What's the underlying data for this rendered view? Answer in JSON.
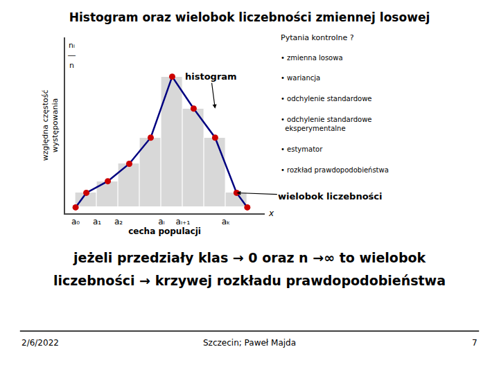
{
  "chart_data": {
    "type": "histogram",
    "title": "Histogram oraz wielobok liczebności zmiennej losowej",
    "xlabel": "cecha populacji",
    "ylabel": "względna częstość\nwystępowania",
    "bins": [
      0,
      1,
      2,
      3,
      4,
      5,
      6,
      7,
      8
    ],
    "values": [
      0.1,
      0.18,
      0.3,
      0.48,
      0.9,
      0.68,
      0.48,
      0.1
    ],
    "color": "#d8d8d8",
    "series": [
      {
        "type": "line",
        "color": "#000080",
        "x": [
          0,
          0.5,
          1.5,
          2.5,
          3.5,
          4.5,
          5.5,
          6.5,
          7.5,
          8
        ],
        "values": [
          0,
          0.1,
          0.18,
          0.3,
          0.48,
          0.9,
          0.68,
          0.48,
          0.1,
          0
        ]
      },
      {
        "type": "scatter",
        "color": "#cc0000",
        "marker": "circle",
        "x": [
          0,
          0.5,
          1.5,
          2.5,
          3.5,
          4.5,
          5.5,
          6.5,
          7.5,
          8
        ],
        "values": [
          0,
          0.1,
          0.18,
          0.3,
          0.48,
          0.9,
          0.68,
          0.48,
          0.1,
          0
        ]
      }
    ],
    "xlim": [
      -0.5,
      8.8
    ],
    "xticks": [
      {
        "value": 0,
        "label": "a₀"
      },
      {
        "value": 1,
        "label": "a₁"
      },
      {
        "value": 2,
        "label": "a₂"
      },
      {
        "value": 4,
        "label": "aᵢ"
      },
      {
        "value": 5,
        "label": "aᵢ₊₁"
      },
      {
        "value": 7,
        "label": "aₖ"
      }
    ],
    "ylim": [
      -0.04,
      1.17
    ],
    "tick_labels": "x",
    "grid": false,
    "annotations": [
      {
        "text": "histogram",
        "x": 6.5,
        "y": 0.68
      },
      {
        "text": "wielobok liczebności",
        "x": 7.5,
        "y": 0.1
      },
      {
        "text": "x"
      },
      {
        "text": "nᵢ\n―\nn"
      },
      {
        "text": "Pytania kontrolne ?"
      },
      {
        "text": "• zmienna losowa"
      },
      {
        "text": "• wariancja"
      },
      {
        "text": "• odchylenie standardowe"
      },
      {
        "text": "• odchylenie standardowe\n  eksperymentalne"
      },
      {
        "text": "• estymator"
      },
      {
        "text": "• rozkład prawdopodobieństwa"
      },
      {
        "text": "jeżeli przedziały klas → 0 oraz n →∞ to wielobok"
      },
      {
        "text": "liczebności → krzywej rozkładu prawdopodobieństwa"
      },
      {
        "text": "2/6/2022"
      },
      {
        "text": "Szczecin; Paweł Majda"
      },
      {
        "text": "7"
      }
    ]
  }
}
